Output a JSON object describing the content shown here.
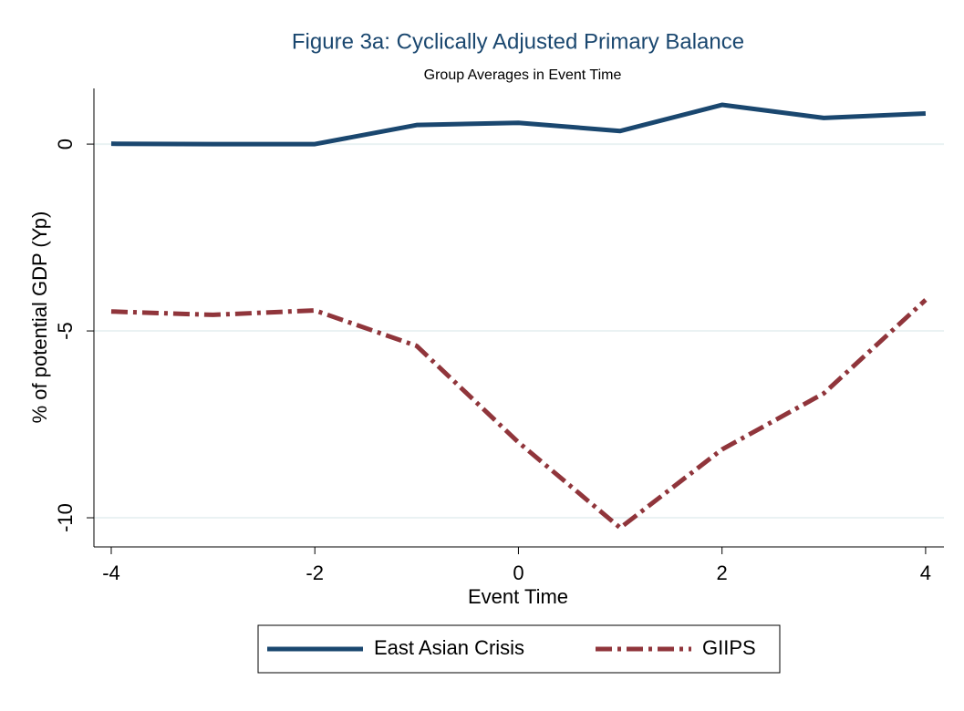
{
  "chart_data": {
    "type": "line",
    "title": "Figure 3a: Cyclically Adjusted Primary Balance",
    "subtitle": "Group Averages in Event Time",
    "xlabel": "Event Time",
    "ylabel": "% of potential GDP (Yp)",
    "x": [
      -4,
      -3,
      -2,
      -1,
      0,
      1,
      2,
      3,
      4
    ],
    "series": [
      {
        "name": "East Asian Crisis",
        "color": "#1a476f",
        "dash": "solid",
        "values": [
          0.01,
          0,
          0,
          0.51,
          0.57,
          0.35,
          1.05,
          0.7,
          0.82
        ]
      },
      {
        "name": "GIIPS",
        "color": "#90353b",
        "dash": "dashdot",
        "values": [
          -4.48,
          -4.57,
          -4.45,
          -5.4,
          -7.98,
          -10.27,
          -8.17,
          -6.67,
          -4.17
        ]
      }
    ],
    "xlim": [
      -4.17,
      4.18
    ],
    "xticks": [
      -4,
      -2,
      0,
      2,
      4
    ],
    "ylim": [
      -10.78,
      1.49
    ],
    "yticks": [
      -10,
      -5,
      0
    ],
    "grid": true,
    "legend": "bottom"
  }
}
